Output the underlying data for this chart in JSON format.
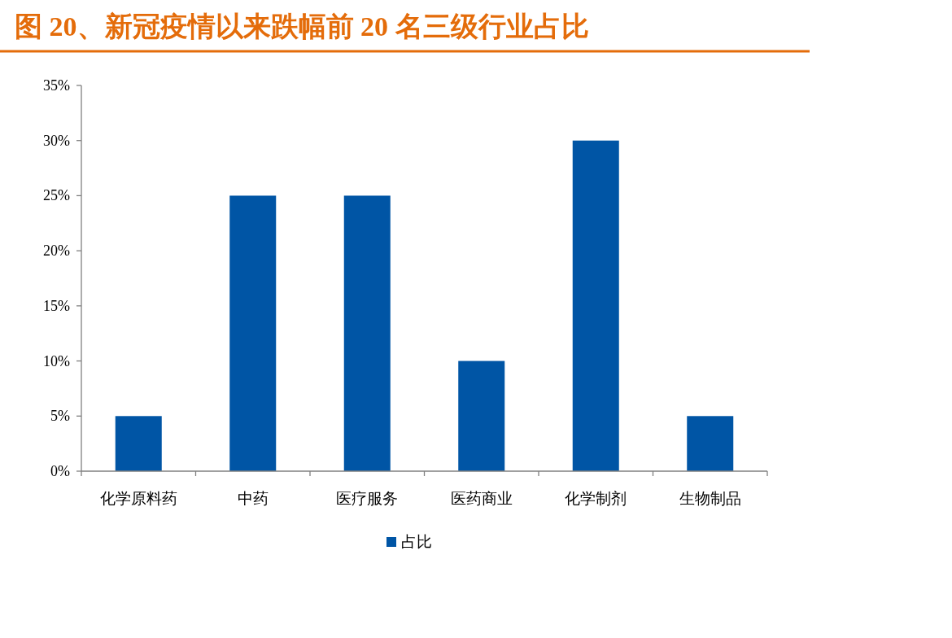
{
  "chart_data": {
    "type": "bar",
    "title": "图 20、新冠疫情以来跌幅前 20 名三级行业占比",
    "categories": [
      "化学原料药",
      "中药",
      "医疗服务",
      "医药商业",
      "化学制剂",
      "生物制品"
    ],
    "series": [
      {
        "name": "占比",
        "color": "#0055a5",
        "values": [
          5,
          25,
          25,
          10,
          30,
          5
        ]
      }
    ],
    "ylim": [
      0,
      35
    ],
    "yticks": [
      {
        "value": 0,
        "label": "0%"
      },
      {
        "value": 5,
        "label": "5%"
      },
      {
        "value": 10,
        "label": "10%"
      },
      {
        "value": 15,
        "label": "15%"
      },
      {
        "value": 20,
        "label": "20%"
      },
      {
        "value": 25,
        "label": "25%"
      },
      {
        "value": 30,
        "label": "30%"
      },
      {
        "value": 35,
        "label": "35%"
      }
    ],
    "legend": "bottom"
  }
}
